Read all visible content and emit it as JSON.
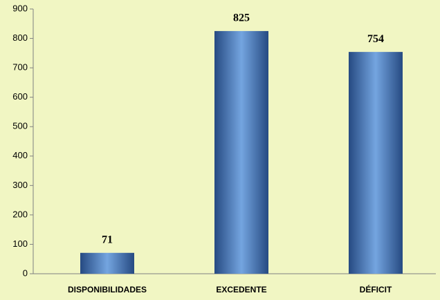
{
  "chart_data": {
    "type": "bar",
    "categories": [
      "DISPONIBILIDADES",
      "EXCEDENTE",
      "DÉFICIT"
    ],
    "values": [
      71,
      825,
      754
    ],
    "ylim": [
      0,
      900
    ],
    "yticks": [
      0,
      100,
      200,
      300,
      400,
      500,
      600,
      700,
      800,
      900
    ],
    "grid": false
  }
}
